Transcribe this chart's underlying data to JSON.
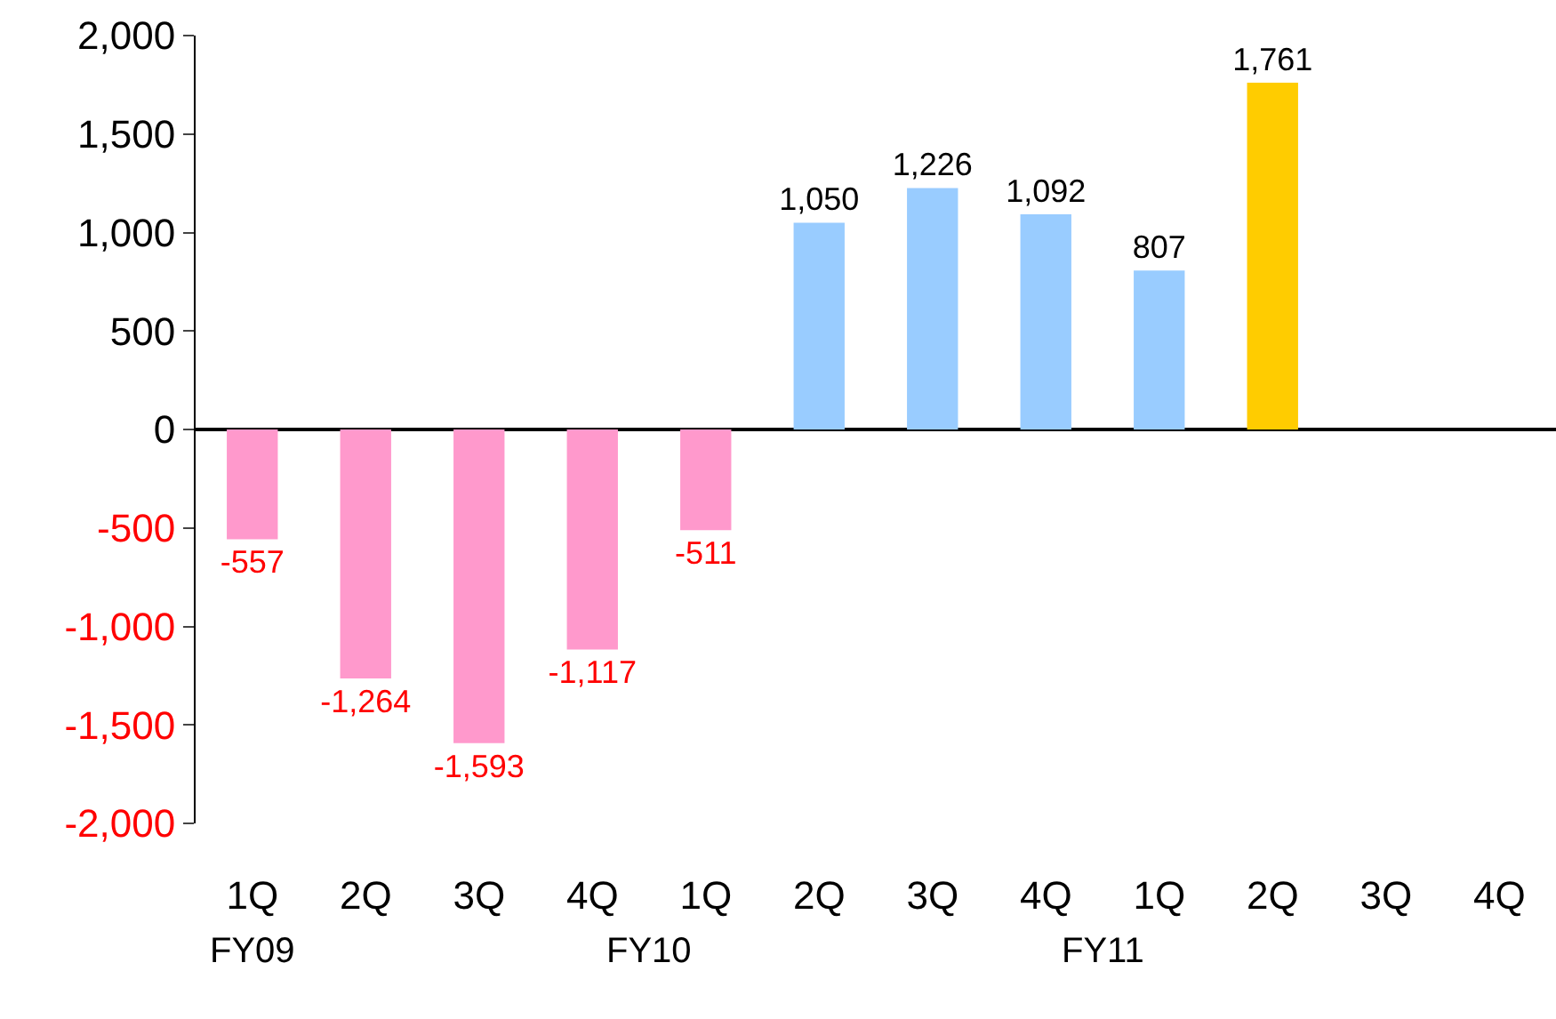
{
  "chart_data": {
    "type": "bar",
    "categories": [
      "1Q",
      "2Q",
      "3Q",
      "4Q",
      "1Q",
      "2Q",
      "3Q",
      "4Q",
      "1Q",
      "2Q",
      "3Q",
      "4Q"
    ],
    "values": [
      -557,
      -1264,
      -1593,
      -1117,
      -511,
      1050,
      1226,
      1092,
      807,
      1761,
      null,
      null
    ],
    "colors": [
      "#ff99cc",
      "#ff99cc",
      "#ff99cc",
      "#ff99cc",
      "#ff99cc",
      "#99ccff",
      "#99ccff",
      "#99ccff",
      "#99ccff",
      "#ffcc00",
      "#ffcc00",
      "#ffcc00"
    ],
    "value_labels": [
      "-557",
      "-1,264",
      "-1,593",
      "-1,117",
      "-511",
      "1,050",
      "1,226",
      "1,092",
      "807",
      "1,761",
      null,
      null
    ],
    "ylim": [
      -2000,
      2000
    ],
    "yticks": [
      {
        "value": -2000,
        "label": "-2,000"
      },
      {
        "value": -1500,
        "label": "-1,500"
      },
      {
        "value": -1000,
        "label": "-1,000"
      },
      {
        "value": -500,
        "label": "-500"
      },
      0,
      500,
      {
        "value": 1000,
        "label": "1,000"
      },
      {
        "value": 1500,
        "label": "1,500"
      },
      {
        "value": 2000,
        "label": "2,000"
      }
    ],
    "annotations": [
      "FY09",
      "FY10",
      "FY11"
    ]
  }
}
